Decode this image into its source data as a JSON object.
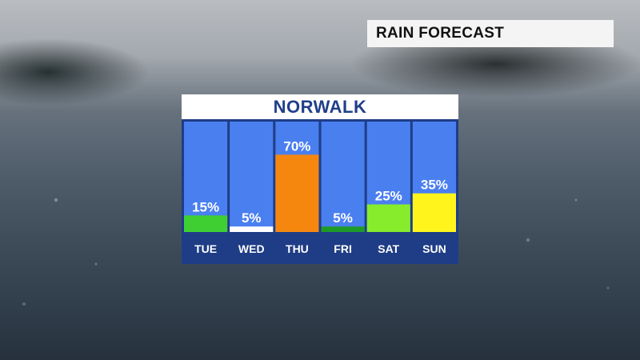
{
  "header": {
    "title": "RAIN FORECAST"
  },
  "panel": {
    "location": "NORWALK"
  },
  "colors": {
    "column_bg": "#4a7ff0",
    "day_label_bg": "#1f3d86",
    "label_text": "#ffffff"
  },
  "chart_data": {
    "type": "bar",
    "title": "NORWALK",
    "xlabel": "",
    "ylabel": "",
    "ylim": [
      0,
      100
    ],
    "grid": false,
    "categories": [
      "TUE",
      "WED",
      "THU",
      "FRI",
      "SAT",
      "SUN"
    ],
    "values": [
      15,
      5,
      70,
      5,
      25,
      35
    ],
    "value_labels": [
      "15%",
      "5%",
      "70%",
      "5%",
      "25%",
      "35%"
    ],
    "bar_colors": [
      "#3fcf33",
      "#ffffff",
      "#f5870f",
      "#1e9a28",
      "#86ec2c",
      "#fff51c"
    ]
  }
}
